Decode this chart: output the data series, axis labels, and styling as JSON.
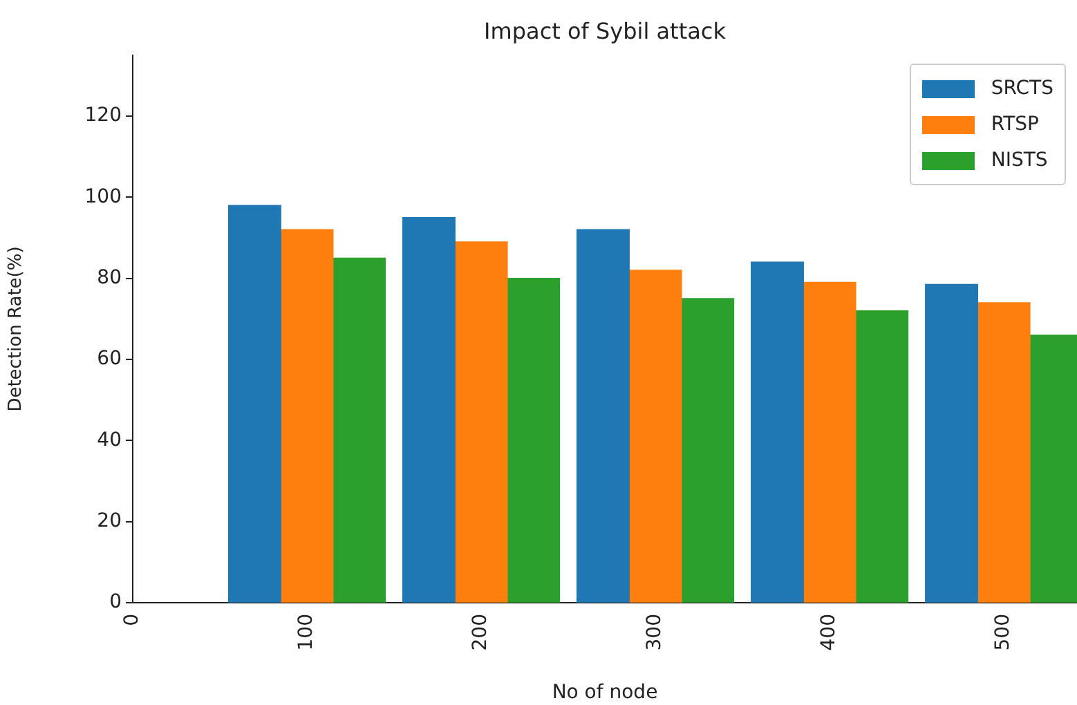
{
  "chart_data": {
    "type": "bar",
    "title": "Impact of Sybil attack",
    "xlabel": "No of node",
    "ylabel": "Detection Rate(%)",
    "x": [
      100,
      200,
      300,
      400,
      500
    ],
    "series": [
      {
        "name": "SRCTS",
        "color": "#1f77b4",
        "values": [
          98,
          95,
          92,
          84,
          78.5
        ]
      },
      {
        "name": "RTSP",
        "color": "#ff7f0e",
        "values": [
          92,
          89,
          82,
          79,
          74
        ]
      },
      {
        "name": "NISTS",
        "color": "#2ca02c",
        "values": [
          85,
          80,
          75,
          72,
          66
        ]
      }
    ],
    "xlim": [
      0,
      542
    ],
    "xticks": [
      0,
      100,
      200,
      300,
      400,
      500
    ],
    "ylim": [
      0,
      135
    ],
    "yticks": [
      0,
      20,
      40,
      60,
      80,
      100,
      120
    ],
    "grid": false,
    "legend": "top right"
  }
}
